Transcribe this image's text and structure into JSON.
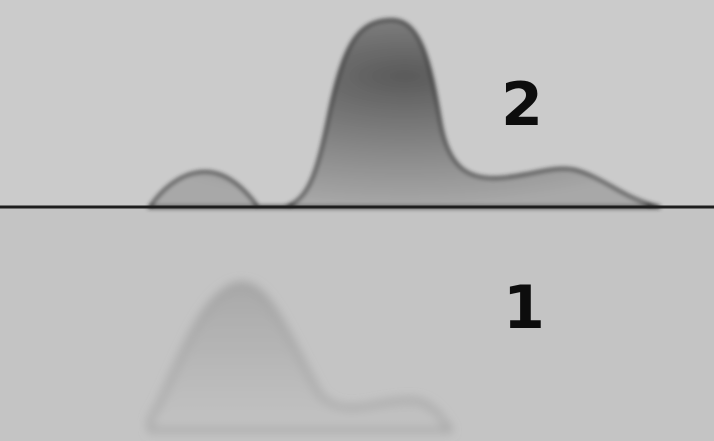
{
  "labels": {
    "upper": "2",
    "lower": "1"
  }
}
